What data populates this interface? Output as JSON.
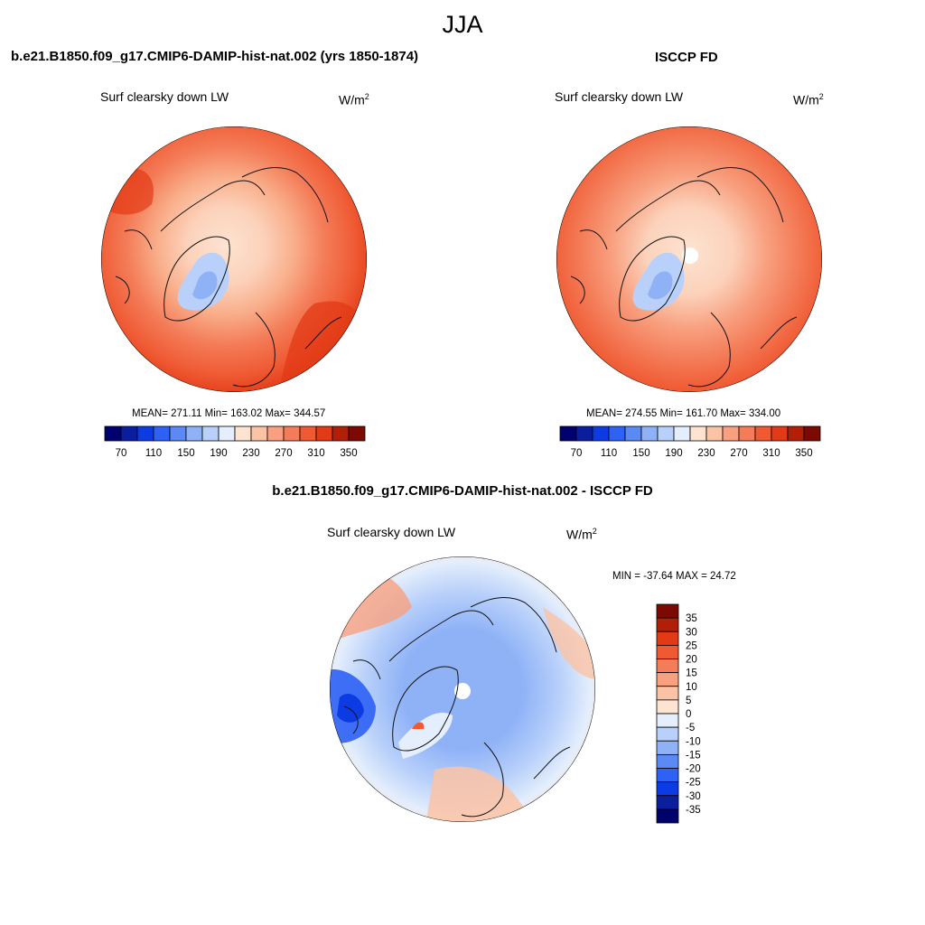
{
  "main_title": "JJA",
  "units_base": "W/m",
  "units_exp": "2",
  "panels": [
    {
      "title": "b.e21.B1850.f09_g17.CMIP6-DAMIP-hist-nat.002 (yrs 1850-1874)",
      "variable": "Surf clearsky down LW",
      "stats": "MEAN= 271.11  Min= 163.02  Max= 344.57"
    },
    {
      "title": "ISCCP FD",
      "variable": "Surf clearsky down LW",
      "stats": "MEAN= 274.55  Min= 161.70  Max= 334.00"
    },
    {
      "title": "b.e21.B1850.f09_g17.CMIP6-DAMIP-hist-nat.002 - ISCCP FD",
      "variable": "Surf clearsky down LW",
      "stats": "MIN = -37.64 MAX =  24.72"
    }
  ],
  "chart_data": [
    {
      "type": "heatmap",
      "projection": "north polar stereographic",
      "title": "b.e21.B1850.f09_g17.CMIP6-DAMIP-hist-nat.002 (yrs 1850-1874)",
      "variable": "Surf clearsky down LW",
      "units": "W/m2",
      "mean": 271.11,
      "min": 163.02,
      "max": 344.57,
      "colorbar": {
        "orientation": "horizontal",
        "levels": [
          70,
          90,
          110,
          130,
          150,
          170,
          190,
          210,
          230,
          250,
          270,
          290,
          310,
          330,
          350
        ],
        "tick_labels": [
          "70",
          "110",
          "150",
          "190",
          "230",
          "270",
          "310",
          "350"
        ],
        "colors": [
          "#01016e",
          "#0a1e9e",
          "#0d3be3",
          "#2e61f5",
          "#5b8af5",
          "#8fb2f7",
          "#b8d0fa",
          "#e4eefc",
          "#fde3d1",
          "#fbc3a5",
          "#f8a07f",
          "#f47c58",
          "#ef5a33",
          "#e23a16",
          "#b01f06",
          "#7c0a03"
        ]
      }
    },
    {
      "type": "heatmap",
      "projection": "north polar stereographic",
      "title": "ISCCP FD",
      "variable": "Surf clearsky down LW",
      "units": "W/m2",
      "mean": 274.55,
      "min": 161.7,
      "max": 334.0,
      "colorbar": {
        "orientation": "horizontal",
        "levels": [
          70,
          90,
          110,
          130,
          150,
          170,
          190,
          210,
          230,
          250,
          270,
          290,
          310,
          330,
          350
        ],
        "tick_labels": [
          "70",
          "110",
          "150",
          "190",
          "230",
          "270",
          "310",
          "350"
        ],
        "colors": [
          "#01016e",
          "#0a1e9e",
          "#0d3be3",
          "#2e61f5",
          "#5b8af5",
          "#8fb2f7",
          "#b8d0fa",
          "#e4eefc",
          "#fde3d1",
          "#fbc3a5",
          "#f8a07f",
          "#f47c58",
          "#ef5a33",
          "#e23a16",
          "#b01f06",
          "#7c0a03"
        ]
      }
    },
    {
      "type": "heatmap",
      "projection": "north polar stereographic",
      "title": "b.e21.B1850.f09_g17.CMIP6-DAMIP-hist-nat.002 - ISCCP FD",
      "variable": "Surf clearsky down LW",
      "units": "W/m2",
      "min": -37.64,
      "max": 24.72,
      "colorbar": {
        "orientation": "vertical",
        "levels": [
          35,
          30,
          25,
          20,
          15,
          10,
          5,
          0,
          -5,
          -10,
          -15,
          -20,
          -25,
          -30,
          -35
        ],
        "tick_labels": [
          "35",
          "30",
          "25",
          "20",
          "15",
          "10",
          "5",
          "0",
          "-5",
          "-10",
          "-15",
          "-20",
          "-25",
          "-30",
          "-35"
        ],
        "colors": [
          "#7c0a03",
          "#b01f06",
          "#e23a16",
          "#ef5a33",
          "#f47c58",
          "#f8a07f",
          "#fbc3a5",
          "#fde3d1",
          "#e4eefc",
          "#b8d0fa",
          "#8fb2f7",
          "#5b8af5",
          "#2e61f5",
          "#0d3be3",
          "#0a1e9e",
          "#01016e"
        ]
      }
    }
  ]
}
